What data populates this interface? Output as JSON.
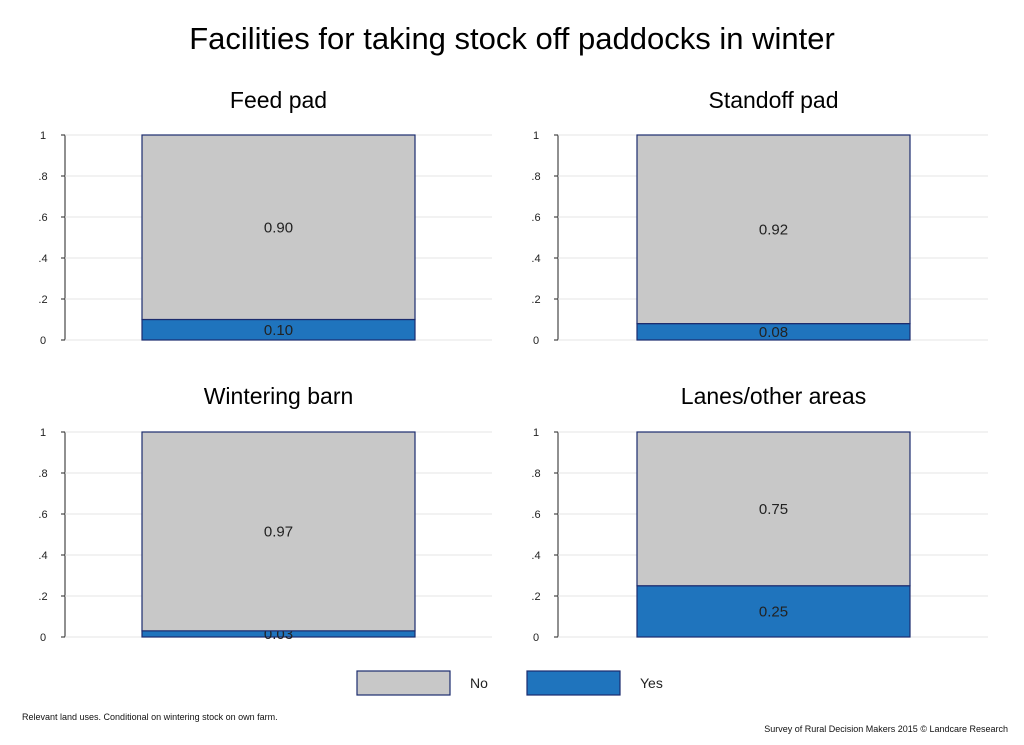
{
  "title": "Facilities for taking stock off paddocks in winter",
  "note_left": "Relevant land uses. Conditional on wintering stock on own farm.",
  "note_right": "Survey of Rural Decision Makers 2015 © Landcare Research",
  "colors": {
    "No": "#c8c8c8",
    "Yes": "#1f74bd",
    "outline": "#1c2c6e",
    "grid": "#e6e6e6"
  },
  "legend": [
    {
      "label": "No",
      "color": "#c8c8c8"
    },
    {
      "label": "Yes",
      "color": "#1f74bd"
    }
  ],
  "chart_data": [
    {
      "type": "bar",
      "stacked": true,
      "title": "Feed pad",
      "ylim": [
        0,
        1
      ],
      "yticks": [
        "0",
        ".2",
        ".4",
        ".6",
        ".8",
        "1"
      ],
      "series": [
        {
          "name": "Yes",
          "values": [
            0.1
          ],
          "labels": [
            "0.10"
          ]
        },
        {
          "name": "No",
          "values": [
            0.9
          ],
          "labels": [
            "0.90"
          ]
        }
      ]
    },
    {
      "type": "bar",
      "stacked": true,
      "title": "Standoff pad",
      "ylim": [
        0,
        1
      ],
      "yticks": [
        "0",
        ".2",
        ".4",
        ".6",
        ".8",
        "1"
      ],
      "series": [
        {
          "name": "Yes",
          "values": [
            0.08
          ],
          "labels": [
            "0.08"
          ]
        },
        {
          "name": "No",
          "values": [
            0.92
          ],
          "labels": [
            "0.92"
          ]
        }
      ]
    },
    {
      "type": "bar",
      "stacked": true,
      "title": "Wintering barn",
      "ylim": [
        0,
        1
      ],
      "yticks": [
        "0",
        ".2",
        ".4",
        ".6",
        ".8",
        "1"
      ],
      "series": [
        {
          "name": "Yes",
          "values": [
            0.03
          ],
          "labels": [
            "0.03"
          ]
        },
        {
          "name": "No",
          "values": [
            0.97
          ],
          "labels": [
            "0.97"
          ]
        }
      ]
    },
    {
      "type": "bar",
      "stacked": true,
      "title": "Lanes/other areas",
      "ylim": [
        0,
        1
      ],
      "yticks": [
        "0",
        ".2",
        ".4",
        ".6",
        ".8",
        "1"
      ],
      "series": [
        {
          "name": "Yes",
          "values": [
            0.25
          ],
          "labels": [
            "0.25"
          ]
        },
        {
          "name": "No",
          "values": [
            0.75
          ],
          "labels": [
            "0.75"
          ]
        }
      ]
    }
  ]
}
